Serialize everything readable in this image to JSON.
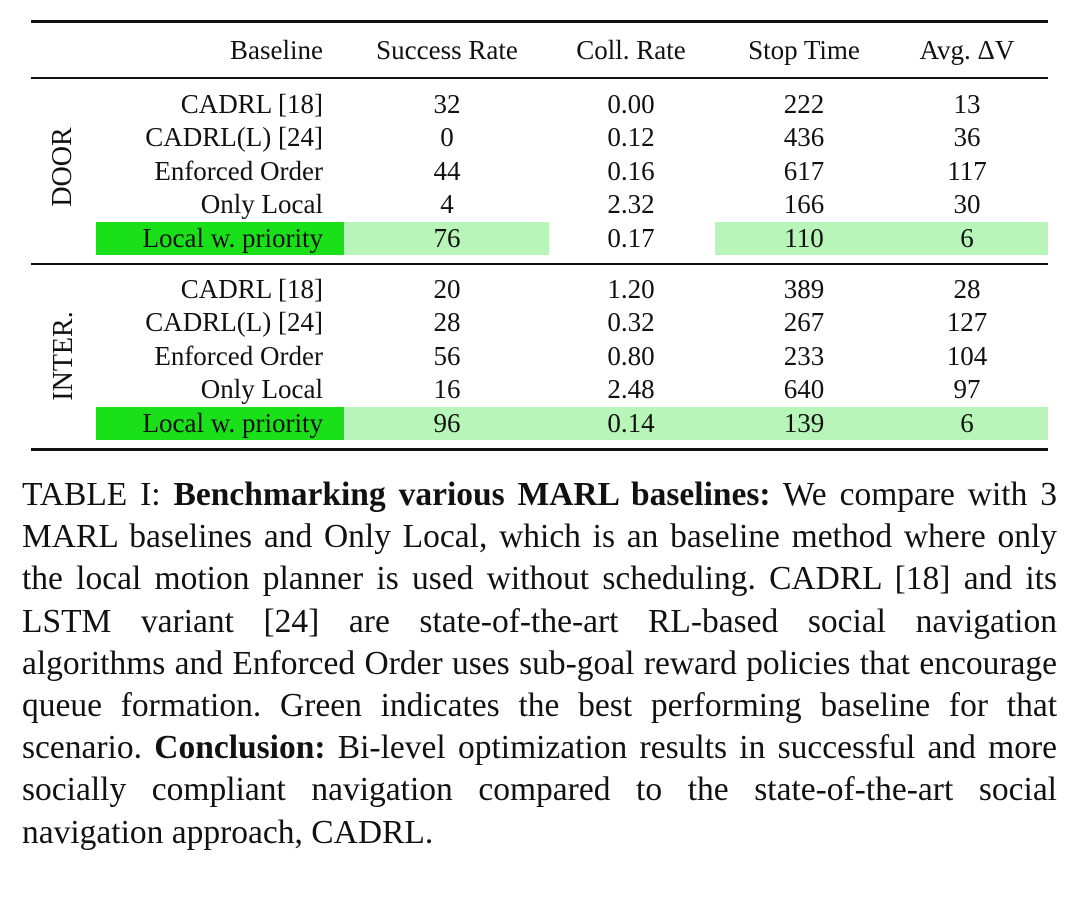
{
  "table": {
    "headers": {
      "baseline": "Baseline",
      "success_rate": "Success Rate",
      "coll_rate": "Coll. Rate",
      "stop_time": "Stop Time",
      "avg_dv": "Avg. ΔV"
    },
    "groups": [
      {
        "label": "DOOR",
        "rows": [
          {
            "baseline": "CADRL [18]",
            "success_rate": "32",
            "coll_rate": "0.00",
            "stop_time": "222",
            "avg_dv": "13"
          },
          {
            "baseline": "CADRL(L) [24]",
            "success_rate": "0",
            "coll_rate": "0.12",
            "stop_time": "436",
            "avg_dv": "36"
          },
          {
            "baseline": "Enforced Order",
            "success_rate": "44",
            "coll_rate": "0.16",
            "stop_time": "617",
            "avg_dv": "117"
          },
          {
            "baseline": "Only Local",
            "success_rate": "4",
            "coll_rate": "2.32",
            "stop_time": "166",
            "avg_dv": "30"
          },
          {
            "baseline": "Local w. priority",
            "success_rate": "76",
            "coll_rate": "0.17",
            "stop_time": "110",
            "avg_dv": "6"
          }
        ]
      },
      {
        "label": "INTER.",
        "rows": [
          {
            "baseline": "CADRL [18]",
            "success_rate": "20",
            "coll_rate": "1.20",
            "stop_time": "389",
            "avg_dv": "28"
          },
          {
            "baseline": "CADRL(L) [24]",
            "success_rate": "28",
            "coll_rate": "0.32",
            "stop_time": "267",
            "avg_dv": "127"
          },
          {
            "baseline": "Enforced Order",
            "success_rate": "56",
            "coll_rate": "0.80",
            "stop_time": "233",
            "avg_dv": "104"
          },
          {
            "baseline": "Only Local",
            "success_rate": "16",
            "coll_rate": "2.48",
            "stop_time": "640",
            "avg_dv": "97"
          },
          {
            "baseline": "Local w. priority",
            "success_rate": "96",
            "coll_rate": "0.14",
            "stop_time": "139",
            "avg_dv": "6"
          }
        ]
      }
    ],
    "highlight_colors": {
      "baseline": "#19e019",
      "cell": "#b8f5b8"
    }
  },
  "caption": {
    "label": "TABLE I: ",
    "bold_title": "Benchmarking various MARL baselines:",
    "body": " We compare with 3 MARL baselines and Only Local, which is an baseline method where only the local motion planner is used without scheduling. CADRL [18] and its LSTM variant [24] are state-of-the-art RL-based social navigation algorithms and Enforced Order uses sub-goal reward policies that encourage queue formation. Green indicates the best performing baseline for that scenario. ",
    "conclusion_label": "Conclusion:",
    "conclusion_text": " Bi-level optimization results in successful and more socially compliant navigation compared to the state-of-the-art social navigation approach, CADRL."
  }
}
